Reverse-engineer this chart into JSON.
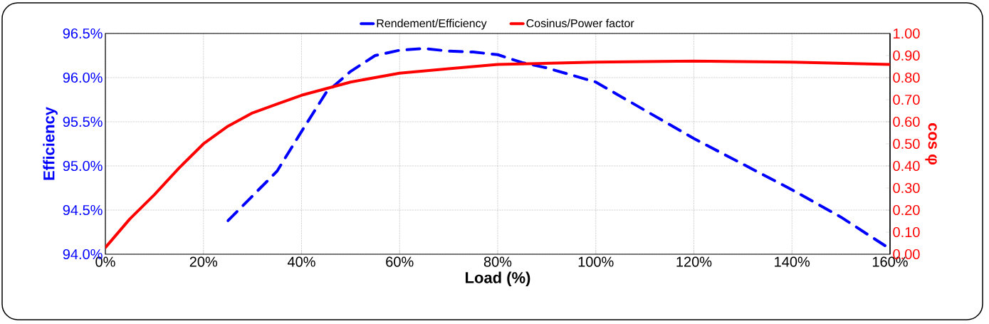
{
  "chart_data": {
    "type": "line",
    "xlabel": "Load (%)",
    "ylabel": "Efficiency",
    "y2label": "cos φ",
    "xlim": [
      0,
      160
    ],
    "xticks": [
      {
        "value": 0,
        "label": "0%"
      },
      {
        "value": 20,
        "label": "20%"
      },
      {
        "value": 40,
        "label": "40%"
      },
      {
        "value": 60,
        "label": "60%"
      },
      {
        "value": 80,
        "label": "80%"
      },
      {
        "value": 100,
        "label": "100%"
      },
      {
        "value": 120,
        "label": "120%"
      },
      {
        "value": 140,
        "label": "140%"
      },
      {
        "value": 160,
        "label": "160%"
      }
    ],
    "ylim": [
      94.0,
      96.5
    ],
    "yticks": [
      {
        "value": 94.0,
        "label": "94.0%"
      },
      {
        "value": 94.5,
        "label": "94.5%"
      },
      {
        "value": 95.0,
        "label": "95.0%"
      },
      {
        "value": 95.5,
        "label": "95.5%"
      },
      {
        "value": 96.0,
        "label": "96.0%"
      },
      {
        "value": 96.5,
        "label": "96.5%"
      }
    ],
    "y2lim": [
      0,
      1
    ],
    "y2ticks": [
      {
        "value": 0,
        "label": "0.00"
      },
      {
        "value": 0.1,
        "label": "0.10"
      },
      {
        "value": 0.2,
        "label": "0.20"
      },
      {
        "value": 0.3,
        "label": "0.30"
      },
      {
        "value": 0.4,
        "label": "0.40"
      },
      {
        "value": 0.5,
        "label": "0.50"
      },
      {
        "value": 0.6,
        "label": "0.60"
      },
      {
        "value": 0.7,
        "label": "0.70"
      },
      {
        "value": 0.8,
        "label": "0.80"
      },
      {
        "value": 0.9,
        "label": "0.90"
      },
      {
        "value": 1,
        "label": "1.00"
      }
    ],
    "grid": true,
    "legend": "top",
    "marker": "none",
    "series": [
      {
        "name": "Rendement/Efficiency",
        "color": "#0000ff",
        "line_style": "dashed",
        "axis": "y",
        "x": [
          25,
          30,
          35,
          40,
          45,
          50,
          55,
          60,
          65,
          70,
          75,
          80,
          85,
          90,
          95,
          100,
          110,
          120,
          130,
          140,
          150,
          160
        ],
        "values": [
          94.38,
          94.66,
          94.94,
          95.39,
          95.83,
          96.07,
          96.25,
          96.31,
          96.33,
          96.3,
          96.29,
          96.26,
          96.17,
          96.11,
          96.03,
          95.95,
          95.63,
          95.31,
          95.02,
          94.73,
          94.42,
          94.06
        ]
      },
      {
        "name": "Cosinus/Power factor",
        "color": "#ff0000",
        "line_style": "solid",
        "axis": "y2",
        "x": [
          0,
          5,
          10,
          15,
          20,
          25,
          30,
          35,
          40,
          50,
          60,
          70,
          80,
          100,
          120,
          140,
          160
        ],
        "values": [
          0.03,
          0.16,
          0.27,
          0.39,
          0.5,
          0.58,
          0.64,
          0.68,
          0.72,
          0.78,
          0.82,
          0.84,
          0.86,
          0.87,
          0.875,
          0.87,
          0.86
        ]
      }
    ]
  }
}
